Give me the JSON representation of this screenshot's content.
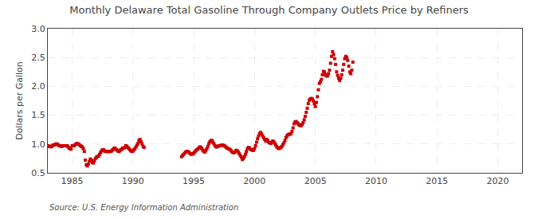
{
  "chart_data": {
    "type": "scatter",
    "title": "Monthly Delaware Total Gasoline Through Company Outlets Price by Refiners",
    "ylabel": "Dollars per Gallon",
    "annotations": [
      "Source: U.S. Energy Information Administration"
    ],
    "color": "#cc0000",
    "marker": "square",
    "grid": true,
    "xlim": [
      1983,
      2022
    ],
    "ylim": [
      0.5,
      3.0
    ],
    "xticks": [
      1985,
      1990,
      1995,
      2000,
      2005,
      2010,
      2015,
      2020
    ],
    "yticks": [
      0.5,
      {
        "value": 1.0,
        "label": "1.0"
      },
      1.5,
      {
        "value": 2.0,
        "label": "2.0"
      },
      2.5,
      {
        "value": 3.0,
        "label": "3.0"
      }
    ],
    "x": [
      1983.0,
      1983.083,
      1983.167,
      1983.25,
      1983.333,
      1983.417,
      1983.5,
      1983.583,
      1983.667,
      1983.75,
      1983.833,
      1983.917,
      1984.0,
      1984.083,
      1984.167,
      1984.25,
      1984.333,
      1984.417,
      1984.5,
      1984.583,
      1984.667,
      1984.75,
      1984.833,
      1984.917,
      1985.0,
      1985.083,
      1985.167,
      1985.25,
      1985.333,
      1985.417,
      1985.5,
      1985.583,
      1985.667,
      1985.75,
      1985.833,
      1985.917,
      1986.0,
      1986.083,
      1986.167,
      1986.25,
      1986.333,
      1986.417,
      1986.5,
      1986.583,
      1986.667,
      1986.75,
      1986.833,
      1986.917,
      1987.0,
      1987.083,
      1987.167,
      1987.25,
      1987.333,
      1987.417,
      1987.5,
      1987.583,
      1987.667,
      1987.75,
      1987.833,
      1987.917,
      1988.0,
      1988.083,
      1988.167,
      1988.25,
      1988.333,
      1988.417,
      1988.5,
      1988.583,
      1988.667,
      1988.75,
      1988.833,
      1988.917,
      1989.0,
      1989.083,
      1989.167,
      1989.25,
      1989.333,
      1989.417,
      1989.5,
      1989.583,
      1989.667,
      1989.75,
      1989.833,
      1989.917,
      1990.0,
      1990.083,
      1990.167,
      1990.25,
      1990.333,
      1990.417,
      1990.5,
      1990.583,
      1990.667,
      1990.75,
      1990.833,
      1990.917,
      1994.0,
      1994.083,
      1994.167,
      1994.25,
      1994.333,
      1994.417,
      1994.5,
      1994.583,
      1994.667,
      1994.75,
      1994.833,
      1994.917,
      1995.0,
      1995.083,
      1995.167,
      1995.25,
      1995.333,
      1995.417,
      1995.5,
      1995.583,
      1995.667,
      1995.75,
      1995.833,
      1995.917,
      1996.0,
      1996.083,
      1996.167,
      1996.25,
      1996.333,
      1996.417,
      1996.5,
      1996.583,
      1996.667,
      1996.75,
      1996.833,
      1996.917,
      1997.0,
      1997.083,
      1997.167,
      1997.25,
      1997.333,
      1997.417,
      1997.5,
      1997.583,
      1997.667,
      1997.75,
      1997.833,
      1997.917,
      1998.0,
      1998.083,
      1998.167,
      1998.25,
      1998.333,
      1998.417,
      1998.5,
      1998.583,
      1998.667,
      1998.75,
      1998.833,
      1998.917,
      1999.0,
      1999.083,
      1999.167,
      1999.25,
      1999.333,
      1999.417,
      1999.5,
      1999.583,
      1999.667,
      1999.75,
      1999.833,
      1999.917,
      2000.0,
      2000.083,
      2000.167,
      2000.25,
      2000.333,
      2000.417,
      2000.5,
      2000.583,
      2000.667,
      2000.75,
      2000.833,
      2000.917,
      2001.0,
      2001.083,
      2001.167,
      2001.25,
      2001.333,
      2001.417,
      2001.5,
      2001.583,
      2001.667,
      2001.75,
      2001.833,
      2001.917,
      2002.0,
      2002.083,
      2002.167,
      2002.25,
      2002.333,
      2002.417,
      2002.5,
      2002.583,
      2002.667,
      2002.75,
      2002.833,
      2002.917,
      2003.0,
      2003.083,
      2003.167,
      2003.25,
      2003.333,
      2003.417,
      2003.5,
      2003.583,
      2003.667,
      2003.75,
      2003.833,
      2003.917,
      2004.0,
      2004.083,
      2004.167,
      2004.25,
      2004.333,
      2004.417,
      2004.5,
      2004.583,
      2004.667,
      2004.75,
      2004.833,
      2004.917,
      2005.0,
      2005.083,
      2005.167,
      2005.25,
      2005.333,
      2005.417,
      2005.5,
      2005.583,
      2005.667,
      2005.75,
      2005.833,
      2005.917,
      2006.0,
      2006.083,
      2006.167,
      2006.25,
      2006.333,
      2006.417,
      2006.5,
      2006.583,
      2006.667,
      2006.75,
      2006.833,
      2006.917,
      2007.0,
      2007.083,
      2007.167,
      2007.25,
      2007.333,
      2007.417,
      2007.5,
      2007.583,
      2007.667,
      2007.75,
      2007.833,
      2007.917,
      2008.0,
      2008.083
    ],
    "values": [
      0.97,
      0.96,
      0.96,
      0.95,
      0.96,
      0.98,
      0.98,
      0.99,
      1.0,
      1.0,
      0.99,
      0.97,
      0.97,
      0.96,
      0.96,
      0.97,
      0.97,
      0.97,
      0.97,
      0.97,
      0.95,
      0.93,
      0.92,
      0.91,
      0.97,
      0.97,
      0.97,
      0.99,
      1.0,
      1.01,
      1.0,
      0.99,
      0.97,
      0.96,
      0.95,
      0.92,
      0.87,
      0.72,
      0.64,
      0.62,
      0.65,
      0.7,
      0.74,
      0.72,
      0.68,
      0.67,
      0.71,
      0.75,
      0.77,
      0.78,
      0.79,
      0.82,
      0.85,
      0.88,
      0.9,
      0.9,
      0.88,
      0.87,
      0.87,
      0.87,
      0.87,
      0.87,
      0.87,
      0.88,
      0.9,
      0.92,
      0.93,
      0.91,
      0.9,
      0.88,
      0.87,
      0.88,
      0.9,
      0.91,
      0.93,
      0.93,
      0.94,
      0.97,
      0.96,
      0.94,
      0.92,
      0.9,
      0.88,
      0.87,
      0.88,
      0.9,
      0.92,
      0.95,
      0.98,
      1.01,
      1.06,
      1.08,
      1.04,
      1.0,
      0.96,
      0.94,
      0.78,
      0.8,
      0.82,
      0.84,
      0.86,
      0.87,
      0.87,
      0.86,
      0.84,
      0.83,
      0.82,
      0.83,
      0.84,
      0.86,
      0.88,
      0.9,
      0.91,
      0.93,
      0.95,
      0.94,
      0.92,
      0.89,
      0.87,
      0.86,
      0.89,
      0.92,
      0.96,
      1.01,
      1.04,
      1.06,
      1.06,
      1.03,
      1.0,
      0.97,
      0.95,
      0.95,
      0.96,
      0.97,
      0.97,
      0.98,
      0.98,
      0.98,
      0.97,
      0.96,
      0.94,
      0.93,
      0.92,
      0.91,
      0.9,
      0.88,
      0.86,
      0.85,
      0.85,
      0.87,
      0.89,
      0.88,
      0.86,
      0.83,
      0.8,
      0.77,
      0.73,
      0.75,
      0.78,
      0.82,
      0.87,
      0.92,
      0.94,
      0.93,
      0.91,
      0.9,
      0.89,
      0.89,
      0.92,
      0.97,
      1.03,
      1.09,
      1.14,
      1.18,
      1.2,
      1.17,
      1.14,
      1.11,
      1.08,
      1.05,
      1.08,
      1.06,
      1.03,
      1.02,
      1.01,
      1.03,
      1.05,
      1.04,
      1.01,
      0.98,
      0.95,
      0.93,
      0.92,
      0.93,
      0.94,
      0.96,
      0.99,
      1.02,
      1.06,
      1.11,
      1.14,
      1.16,
      1.17,
      1.17,
      1.18,
      1.22,
      1.28,
      1.35,
      1.38,
      1.39,
      1.37,
      1.35,
      1.33,
      1.32,
      1.32,
      1.34,
      1.37,
      1.42,
      1.48,
      1.55,
      1.62,
      1.7,
      1.76,
      1.78,
      1.79,
      1.78,
      1.75,
      1.7,
      1.65,
      1.72,
      1.82,
      1.94,
      2.05,
      2.08,
      2.12,
      2.2,
      2.26,
      2.25,
      2.2,
      2.18,
      2.18,
      2.22,
      2.28,
      2.4,
      2.52,
      2.6,
      2.55,
      2.48,
      2.38,
      2.25,
      2.19,
      2.14,
      2.1,
      2.14,
      2.2,
      2.28,
      2.38,
      2.48,
      2.52,
      2.5,
      2.45,
      2.35,
      2.25,
      2.22,
      2.28,
      2.42
    ]
  }
}
